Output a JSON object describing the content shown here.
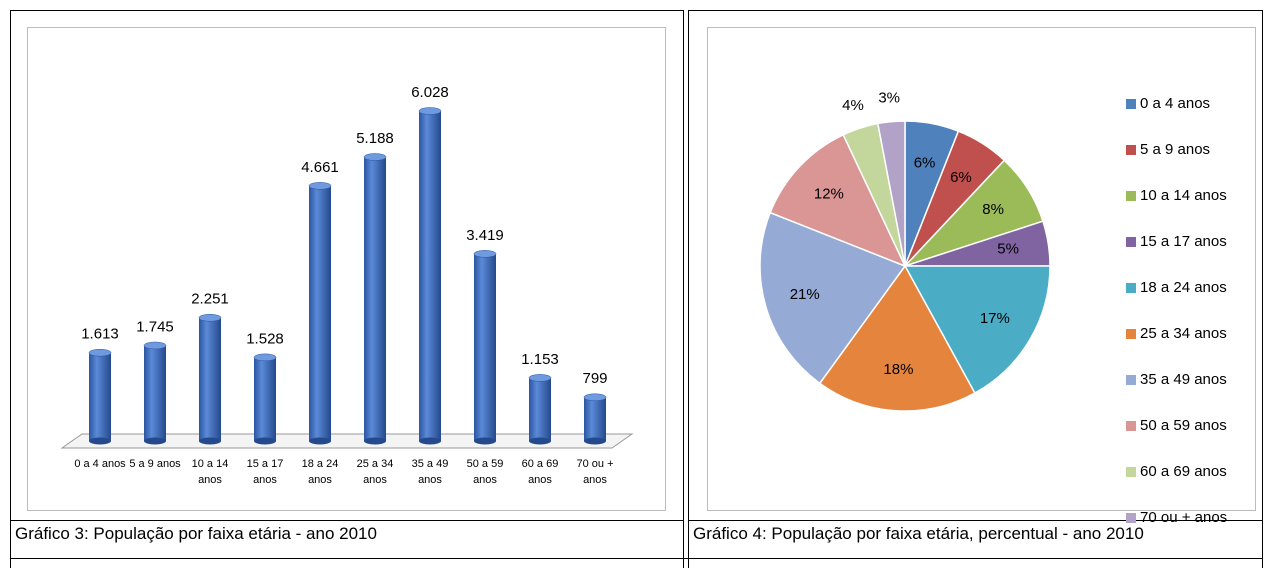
{
  "chart_data": [
    {
      "type": "bar",
      "categories": [
        "0 a 4 anos",
        "5 a 9 anos",
        "10 a 14 anos",
        "15 a 17 anos",
        "18 a 24 anos",
        "25 a 34 anos",
        "35 a 49 anos",
        "50 a 59 anos",
        "60 a 69 anos",
        "70 ou + anos"
      ],
      "values": [
        1613,
        1745,
        2251,
        1528,
        4661,
        5188,
        6028,
        3419,
        1153,
        799
      ],
      "value_labels": [
        "1.613",
        "1.745",
        "2.251",
        "1.528",
        "4.661",
        "5.188",
        "6.028",
        "3.419",
        "1.153",
        "799"
      ],
      "color": "#3f6fc0"
    },
    {
      "type": "pie",
      "categories": [
        "0 a 4 anos",
        "5 a 9 anos",
        "10 a 14 anos",
        "15 a 17 anos",
        "18 a 24 anos",
        "25 a 34 anos",
        "35 a 49 anos",
        "50 a 59 anos",
        "60 a 69 anos",
        "70 ou + anos"
      ],
      "values": [
        6,
        6,
        8,
        5,
        17,
        18,
        21,
        12,
        4,
        3
      ],
      "value_labels": [
        "6%",
        "6%",
        "8%",
        "5%",
        "17%",
        "18%",
        "21%",
        "12%",
        "4%",
        "3%"
      ],
      "colors": [
        "#4f81bd",
        "#c0504d",
        "#9bbb59",
        "#8064a2",
        "#4bacc6",
        "#e5843c",
        "#95aad4",
        "#d99694",
        "#c3d69b",
        "#b3a2c7"
      ],
      "legend": "right"
    }
  ],
  "captions": [
    "Gráfico 3: População por faixa etária - ano 2010",
    "Gráfico 4: População por faixa etária, percentual - ano 2010"
  ]
}
